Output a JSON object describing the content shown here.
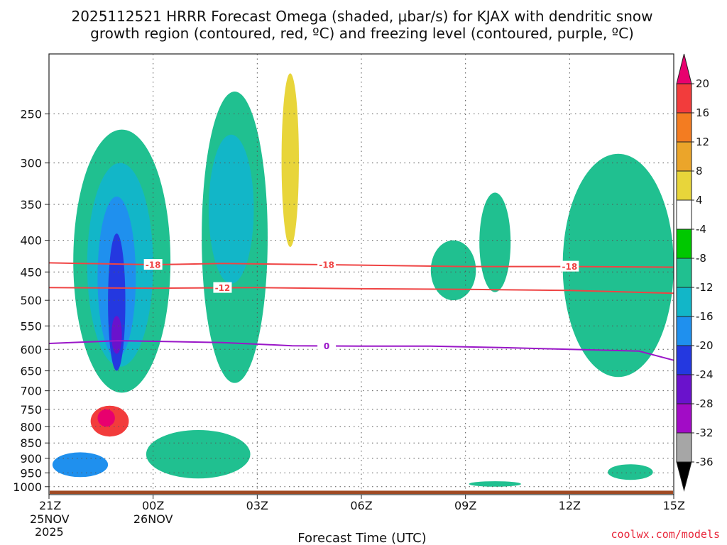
{
  "title_line1": "2025112521 HRRR Forecast Omega (shaded, μbar/s) for KJAX with dendritic snow",
  "title_line2": "growth region (contoured, red, ºC) and freezing level (contoured, purple, ºC)",
  "credit": "coolwx.com/models",
  "chart_data": {
    "type": "heatmap",
    "title": "2025112521 HRRR Forecast Omega (shaded, μbar/s) for KJAX with dendritic snow growth region (contoured, red, ºC) and freezing level (contoured, purple, ºC)",
    "xlabel": "Forecast Time (UTC)",
    "ylabel": "",
    "x_ticks": [
      {
        "label": "21Z",
        "sub1": "25NOV",
        "sub2": "2025",
        "hour": 0
      },
      {
        "label": "00Z",
        "sub1": "26NOV",
        "sub2": "",
        "hour": 3
      },
      {
        "label": "03Z",
        "sub1": "",
        "sub2": "",
        "hour": 6
      },
      {
        "label": "06Z",
        "sub1": "",
        "sub2": "",
        "hour": 9
      },
      {
        "label": "09Z",
        "sub1": "",
        "sub2": "",
        "hour": 12
      },
      {
        "label": "12Z",
        "sub1": "",
        "sub2": "",
        "hour": 15
      },
      {
        "label": "15Z",
        "sub1": "",
        "sub2": "",
        "hour": 18
      }
    ],
    "xlim": [
      0,
      18
    ],
    "y_ticks": [
      250,
      300,
      350,
      400,
      450,
      500,
      550,
      600,
      650,
      700,
      750,
      800,
      850,
      900,
      950,
      1000
    ],
    "ylim": [
      1030,
      200
    ],
    "y_scale": "log-pressure",
    "grid": true,
    "colorbar": {
      "labels": [
        "20",
        "16",
        "12",
        "8",
        "4",
        "-4",
        "-8",
        "-12",
        "-16",
        "-20",
        "-24",
        "-28",
        "-32",
        "-36"
      ],
      "colors": [
        "#e8006e",
        "#f23c3c",
        "#f37c21",
        "#eba52a",
        "#e8d53a",
        "#ffffff",
        "#00c800",
        "#20c090",
        "#12b6c8",
        "#1f90ee",
        "#2438e0",
        "#6a12cc",
        "#a20cc6",
        "#a6a6a6",
        "#000000"
      ]
    },
    "omega_regions": [
      {
        "level": -8,
        "hour_range": [
          0.7,
          3.5
        ],
        "pressure_range": [
          265,
          705
        ]
      },
      {
        "level": -12,
        "hour_range": [
          1.1,
          3.0
        ],
        "pressure_range": [
          300,
          640
        ]
      },
      {
        "level": -16,
        "hour_range": [
          1.4,
          2.5
        ],
        "pressure_range": [
          340,
          620
        ]
      },
      {
        "level": -20,
        "hour_range": [
          1.7,
          2.2
        ],
        "pressure_range": [
          390,
          650
        ]
      },
      {
        "level": -24,
        "hour_range": [
          1.8,
          2.1
        ],
        "pressure_range": [
          530,
          610
        ]
      },
      {
        "level": 16,
        "hour_range": [
          1.2,
          2.3
        ],
        "pressure_range": [
          740,
          830
        ]
      },
      {
        "level": 20,
        "hour_range": [
          1.4,
          1.9
        ],
        "pressure_range": [
          750,
          800
        ]
      },
      {
        "level": -8,
        "hour_range": [
          4.4,
          6.3
        ],
        "pressure_range": [
          230,
          680
        ]
      },
      {
        "level": -12,
        "hour_range": [
          4.6,
          5.9
        ],
        "pressure_range": [
          270,
          470
        ]
      },
      {
        "level": 4,
        "hour_range": [
          6.7,
          7.2
        ],
        "pressure_range": [
          215,
          410
        ]
      },
      {
        "level": -8,
        "hour_range": [
          2.8,
          5.8
        ],
        "pressure_range": [
          810,
          970
        ]
      },
      {
        "level": -16,
        "hour_range": [
          0.1,
          1.7
        ],
        "pressure_range": [
          880,
          965
        ]
      },
      {
        "level": -8,
        "hour_range": [
          11.0,
          12.3
        ],
        "pressure_range": [
          400,
          500
        ]
      },
      {
        "level": -8,
        "hour_range": [
          12.4,
          13.3
        ],
        "pressure_range": [
          335,
          485
        ]
      },
      {
        "level": -8,
        "hour_range": [
          14.8,
          18.0
        ],
        "pressure_range": [
          290,
          665
        ]
      },
      {
        "level": -8,
        "hour_range": [
          12.1,
          13.6
        ],
        "pressure_range": [
          980,
          1000
        ]
      },
      {
        "level": -8,
        "hour_range": [
          16.1,
          17.4
        ],
        "pressure_range": [
          920,
          975
        ]
      }
    ],
    "contours": [
      {
        "name": "-18",
        "color": "#ef4444",
        "label_hours": [
          3.0,
          8.0,
          15.0
        ],
        "points": [
          [
            0,
            435
          ],
          [
            3,
            438
          ],
          [
            5,
            436
          ],
          [
            8,
            438
          ],
          [
            12,
            441
          ],
          [
            15,
            441
          ],
          [
            18,
            442
          ]
        ]
      },
      {
        "name": "-12",
        "color": "#ef4444",
        "label_hours": [
          5.0
        ],
        "points": [
          [
            0,
            477
          ],
          [
            3,
            478
          ],
          [
            6,
            477
          ],
          [
            9,
            479
          ],
          [
            12,
            480
          ],
          [
            15,
            482
          ],
          [
            18,
            487
          ]
        ]
      },
      {
        "name": "0",
        "color": "#9a16c8",
        "label_hours": [
          8.0
        ],
        "points": [
          [
            0,
            587
          ],
          [
            2,
            581
          ],
          [
            5,
            585
          ],
          [
            7,
            592
          ],
          [
            9,
            593
          ],
          [
            11,
            593
          ],
          [
            13,
            596
          ],
          [
            15,
            600
          ],
          [
            17,
            604
          ],
          [
            18,
            625
          ]
        ]
      }
    ],
    "terrain": {
      "color": "#a04a24",
      "pressure_top": 1015
    }
  }
}
